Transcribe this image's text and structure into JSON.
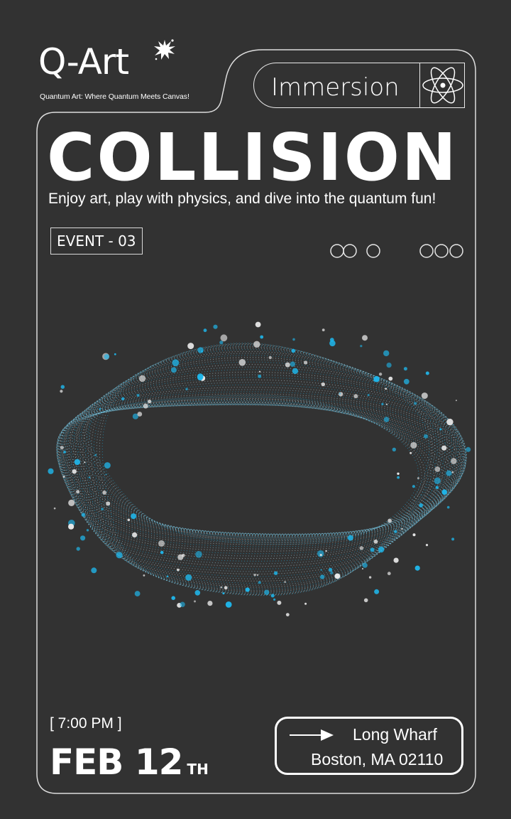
{
  "brand": {
    "logo_text": "Q-Art",
    "tagline": "Quantum Art: Where Quantum Meets Canvas!"
  },
  "badge": {
    "label": "Immersion",
    "icon": "atom-icon"
  },
  "hero": {
    "title": "COLLISION",
    "subtitle": "Enjoy art, play with physics, and dive into the quantum fun!"
  },
  "event_tag": "EVENT - 03",
  "schedule": {
    "time": "[ 7:00 PM ]",
    "date": "FEB 12",
    "date_suffix": "TH"
  },
  "location": {
    "name": "Long Wharf",
    "city": "Boston, MA 02110"
  },
  "colors": {
    "background": "#323232",
    "foreground": "#ffffff",
    "accent": "#1fb6ea"
  }
}
